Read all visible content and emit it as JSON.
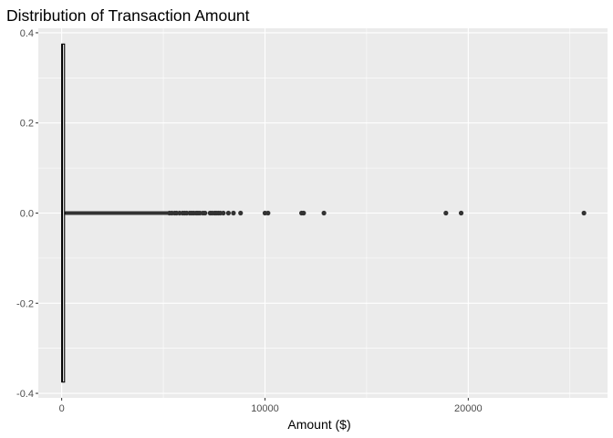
{
  "chart_data": {
    "type": "boxplot",
    "title": "Distribution of Transaction Amount",
    "xlabel": "Amount ($)",
    "ylabel": "",
    "xlim": [
      -1150,
      26850
    ],
    "ylim": [
      -0.41,
      0.41
    ],
    "x_ticks": [
      0,
      10000,
      20000
    ],
    "x_tick_labels": [
      "0",
      "10000",
      "20000"
    ],
    "y_ticks": [
      -0.4,
      -0.2,
      0.0,
      0.2,
      0.4
    ],
    "y_tick_labels": [
      "-0.4",
      "-0.2",
      "0.0",
      "0.2",
      "0.4"
    ],
    "x_minor_ticks": [
      5000,
      15000,
      25000
    ],
    "y_minor_ticks": [
      -0.3,
      -0.1,
      0.1,
      0.3
    ],
    "grid": true,
    "colors": {
      "panel": "#ebebeb",
      "grid": "#ffffff",
      "points": "#333333",
      "box": "#000000"
    },
    "box": {
      "min": 0,
      "q1": 6,
      "median": 22,
      "q3": 77,
      "whisker_high": 185,
      "y_extent": [
        -0.375,
        0.375
      ]
    },
    "outliers": {
      "y": 0,
      "dense_range": [
        190,
        5200
      ],
      "values": [
        5300,
        5420,
        5560,
        5650,
        5800,
        5950,
        6050,
        6150,
        6300,
        6400,
        6500,
        6620,
        6700,
        6800,
        6950,
        7050,
        7300,
        7400,
        7520,
        7600,
        7700,
        7800,
        7950,
        8200,
        8450,
        8800,
        10000,
        10150,
        11800,
        11900,
        12900,
        18900,
        19650,
        25690
      ]
    }
  }
}
